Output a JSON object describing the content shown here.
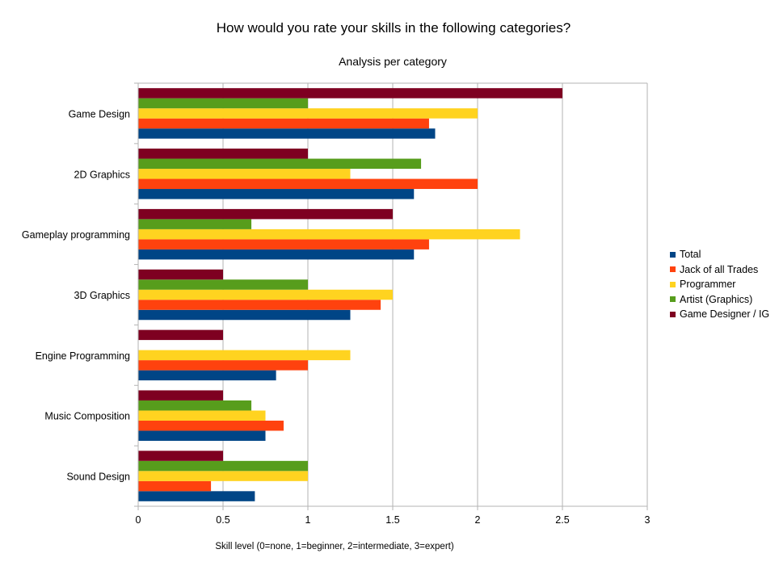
{
  "chart_data": {
    "type": "bar",
    "orientation": "horizontal",
    "title": "How would you rate your skills in the following categories?",
    "subtitle": "Analysis per category",
    "xlabel": "Skill level (0=none, 1=beginner, 2=intermediate, 3=expert)",
    "ylabel": "",
    "xlim": [
      0,
      3
    ],
    "x_ticks": [
      "0",
      "0.5",
      "1",
      "1.5",
      "2",
      "2.5",
      "3"
    ],
    "grid": "vertical",
    "legend_position": "right",
    "categories": [
      "Game Design",
      "2D Graphics",
      "Gameplay programming",
      "3D Graphics",
      "Engine Programming",
      "Music Composition",
      "Sound Design"
    ],
    "series": [
      {
        "name": "Total",
        "color": "#004586",
        "values": [
          1.75,
          1.625,
          1.625,
          1.25,
          0.8125,
          0.75,
          0.6875
        ]
      },
      {
        "name": "Jack of all Trades",
        "color": "#ff420e",
        "values": [
          1.714,
          2.0,
          1.714,
          1.429,
          1.0,
          0.857,
          0.429
        ]
      },
      {
        "name": "Programmer",
        "color": "#ffd320",
        "values": [
          2.0,
          1.25,
          2.25,
          1.5,
          1.25,
          0.75,
          1.0
        ]
      },
      {
        "name": "Artist (Graphics)",
        "color": "#579d1c",
        "values": [
          1.0,
          1.667,
          0.667,
          1.0,
          0,
          0.667,
          1.0
        ]
      },
      {
        "name": "Game Designer / IG",
        "color": "#7e0021",
        "values": [
          2.5,
          1.0,
          1.5,
          0.5,
          0.5,
          0.5,
          0.5
        ]
      }
    ]
  }
}
